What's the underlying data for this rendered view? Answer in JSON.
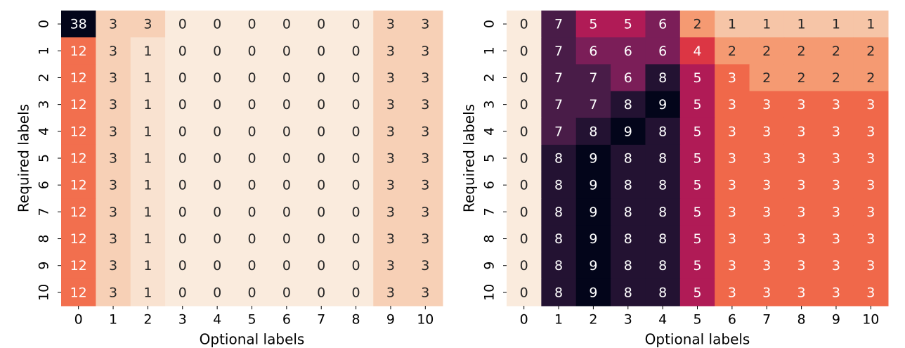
{
  "chart_data": [
    {
      "type": "heatmap",
      "xlabel": "Optional labels",
      "ylabel": "Required labels",
      "xticks": [
        0,
        1,
        2,
        3,
        4,
        5,
        6,
        7,
        8,
        9,
        10
      ],
      "yticks": [
        0,
        1,
        2,
        3,
        4,
        5,
        6,
        7,
        8,
        9,
        10
      ],
      "zlim": [
        0,
        38
      ],
      "colormap": [
        "#faebdd",
        "#f6c9ac",
        "#f6a47c",
        "#f37651",
        "#ea4b3c",
        "#cb1b4f",
        "#9b1b5b",
        "#6b1f56",
        "#3f1b44",
        "#1f1130",
        "#03051a"
      ],
      "values": [
        [
          38,
          3,
          3,
          0,
          0,
          0,
          0,
          0,
          0,
          3,
          3
        ],
        [
          12,
          3,
          1,
          0,
          0,
          0,
          0,
          0,
          0,
          3,
          3
        ],
        [
          12,
          3,
          1,
          0,
          0,
          0,
          0,
          0,
          0,
          3,
          3
        ],
        [
          12,
          3,
          1,
          0,
          0,
          0,
          0,
          0,
          0,
          3,
          3
        ],
        [
          12,
          3,
          1,
          0,
          0,
          0,
          0,
          0,
          0,
          3,
          3
        ],
        [
          12,
          3,
          1,
          0,
          0,
          0,
          0,
          0,
          0,
          3,
          3
        ],
        [
          12,
          3,
          1,
          0,
          0,
          0,
          0,
          0,
          0,
          3,
          3
        ],
        [
          12,
          3,
          1,
          0,
          0,
          0,
          0,
          0,
          0,
          3,
          3
        ],
        [
          12,
          3,
          1,
          0,
          0,
          0,
          0,
          0,
          0,
          3,
          3
        ],
        [
          12,
          3,
          1,
          0,
          0,
          0,
          0,
          0,
          0,
          3,
          3
        ],
        [
          12,
          3,
          1,
          0,
          0,
          0,
          0,
          0,
          0,
          3,
          3
        ]
      ]
    },
    {
      "type": "heatmap",
      "xlabel": "Optional labels",
      "ylabel": "Required labels",
      "xticks": [
        0,
        1,
        2,
        3,
        4,
        5,
        6,
        7,
        8,
        9,
        10
      ],
      "yticks": [
        0,
        1,
        2,
        3,
        4,
        5,
        6,
        7,
        8,
        9,
        10
      ],
      "zlim": [
        0,
        9
      ],
      "colormap": [
        "#faebdd",
        "#f6c9ac",
        "#f6a47c",
        "#f37651",
        "#ea4b3c",
        "#cb1b4f",
        "#9b1b5b",
        "#6b1f56",
        "#3f1b44",
        "#1f1130",
        "#03051a"
      ],
      "values": [
        [
          0,
          7,
          5,
          5,
          6,
          2,
          1,
          1,
          1,
          1,
          1
        ],
        [
          0,
          7,
          6,
          6,
          6,
          4,
          2,
          2,
          2,
          2,
          2
        ],
        [
          0,
          7,
          7,
          6,
          8,
          5,
          3,
          2,
          2,
          2,
          2
        ],
        [
          0,
          7,
          7,
          8,
          9,
          5,
          3,
          3,
          3,
          3,
          3
        ],
        [
          0,
          7,
          8,
          9,
          8,
          5,
          3,
          3,
          3,
          3,
          3
        ],
        [
          0,
          8,
          9,
          8,
          8,
          5,
          3,
          3,
          3,
          3,
          3
        ],
        [
          0,
          8,
          9,
          8,
          8,
          5,
          3,
          3,
          3,
          3,
          3
        ],
        [
          0,
          8,
          9,
          8,
          8,
          5,
          3,
          3,
          3,
          3,
          3
        ],
        [
          0,
          8,
          9,
          8,
          8,
          5,
          3,
          3,
          3,
          3,
          3
        ],
        [
          0,
          8,
          9,
          8,
          8,
          5,
          3,
          3,
          3,
          3,
          3
        ],
        [
          0,
          8,
          9,
          8,
          8,
          5,
          3,
          3,
          3,
          3,
          3
        ]
      ]
    }
  ]
}
